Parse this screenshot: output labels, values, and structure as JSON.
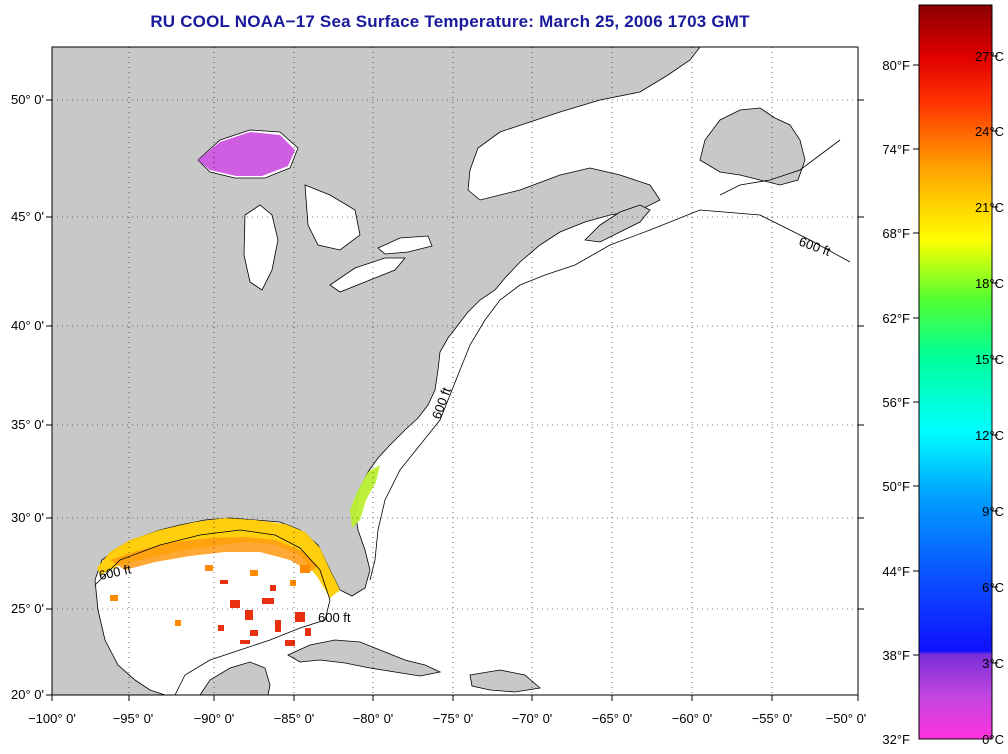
{
  "title": "RU COOL  NOAA−17  Sea Surface Temperature:  March 25, 2006 1703 GMT",
  "lat_labels": [
    "50° 0'",
    "45° 0'",
    "40° 0'",
    "35° 0'",
    "30° 0'",
    "25° 0'",
    "20° 0'"
  ],
  "lon_labels": [
    "−100° 0'",
    "−95° 0'",
    "−90° 0'",
    "−85° 0'",
    "−80° 0'",
    "−75° 0'",
    "−70° 0'",
    "−65° 0'",
    "−60° 0'",
    "−55° 0'",
    "−50° 0'"
  ],
  "contour_label": "600 ft",
  "colorbar": {
    "fahrenheit": [
      "80°F",
      "74°F",
      "68°F",
      "62°F",
      "56°F",
      "50°F",
      "44°F",
      "38°F",
      "32°F"
    ],
    "celsius": [
      "27°C",
      "24°C",
      "21°C",
      "18°C",
      "15°C",
      "12°C",
      "9°C",
      "6°C",
      "3°C",
      "0°C"
    ]
  },
  "colors": {
    "land": "#c8c8c8",
    "ocean": "#ffffff",
    "title": "#1a1a9c",
    "grid": "#000000"
  }
}
